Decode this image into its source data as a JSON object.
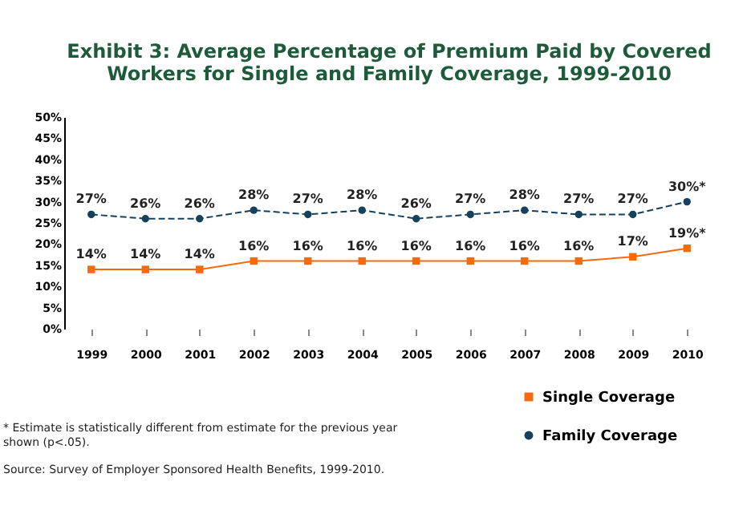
{
  "chart_data": {
    "type": "line",
    "title": [
      "Exhibit 3: Average Percentage of Premium Paid by Covered",
      "Workers for Single and Family Coverage, 1999-2010"
    ],
    "categories": [
      "1999",
      "2000",
      "2001",
      "2002",
      "2003",
      "2004",
      "2005",
      "2006",
      "2007",
      "2008",
      "2009",
      "2010"
    ],
    "series": [
      {
        "name": "Single Coverage",
        "color": "#f26b0f",
        "marker": "square",
        "line_style": "solid",
        "values": [
          14,
          14,
          14,
          16,
          16,
          16,
          16,
          16,
          16,
          16,
          17,
          19
        ],
        "value_labels": [
          "14%",
          "14%",
          "14%",
          "16%",
          "16%",
          "16%",
          "16%",
          "16%",
          "16%",
          "16%",
          "17%",
          "19%*"
        ]
      },
      {
        "name": "Family Coverage",
        "color": "#16415c",
        "marker": "circle",
        "line_style": "dashed",
        "values": [
          27,
          26,
          26,
          28,
          27,
          28,
          26,
          27,
          28,
          27,
          27,
          30
        ],
        "value_labels": [
          "27%",
          "26%",
          "26%",
          "28%",
          "27%",
          "28%",
          "26%",
          "27%",
          "28%",
          "27%",
          "27%",
          "30%*"
        ]
      }
    ],
    "ylim": [
      0,
      50
    ],
    "yticks": [
      {
        "value": 0,
        "label": "0%"
      },
      {
        "value": 5,
        "label": "5%"
      },
      {
        "value": 10,
        "label": "10%"
      },
      {
        "value": 15,
        "label": "15%"
      },
      {
        "value": 20,
        "label": "20%"
      },
      {
        "value": 25,
        "label": "25%"
      },
      {
        "value": 30,
        "label": "30%"
      },
      {
        "value": 35,
        "label": "35%"
      },
      {
        "value": 40,
        "label": "40%"
      },
      {
        "value": 45,
        "label": "45%"
      },
      {
        "value": 50,
        "label": "50%"
      }
    ],
    "grid": false,
    "legend": "bottom right",
    "annotations": [
      "* Estimate is statistically different from estimate for the previous year shown (p<.05).",
      "Source: Survey of Employer Sponsored Health Benefits, 1999-2010."
    ]
  }
}
